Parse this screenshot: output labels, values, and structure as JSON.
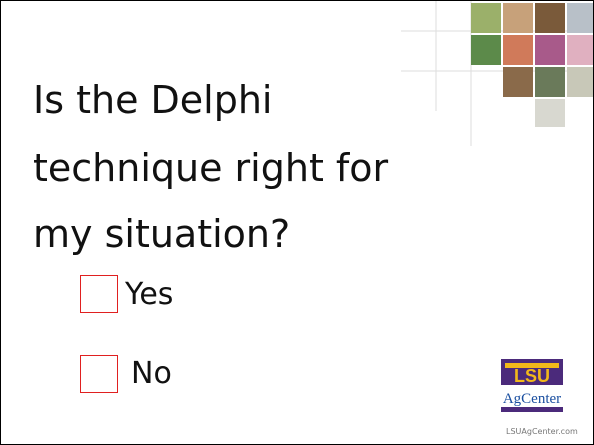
{
  "slide": {
    "title_lines": [
      "Is the Delphi",
      "technique right for",
      "my situation?"
    ],
    "options": [
      "Yes",
      "No"
    ],
    "logo": {
      "top": "LSU",
      "bottom": "AgCenter"
    },
    "footer_url": "LSUAgCenter.com"
  }
}
